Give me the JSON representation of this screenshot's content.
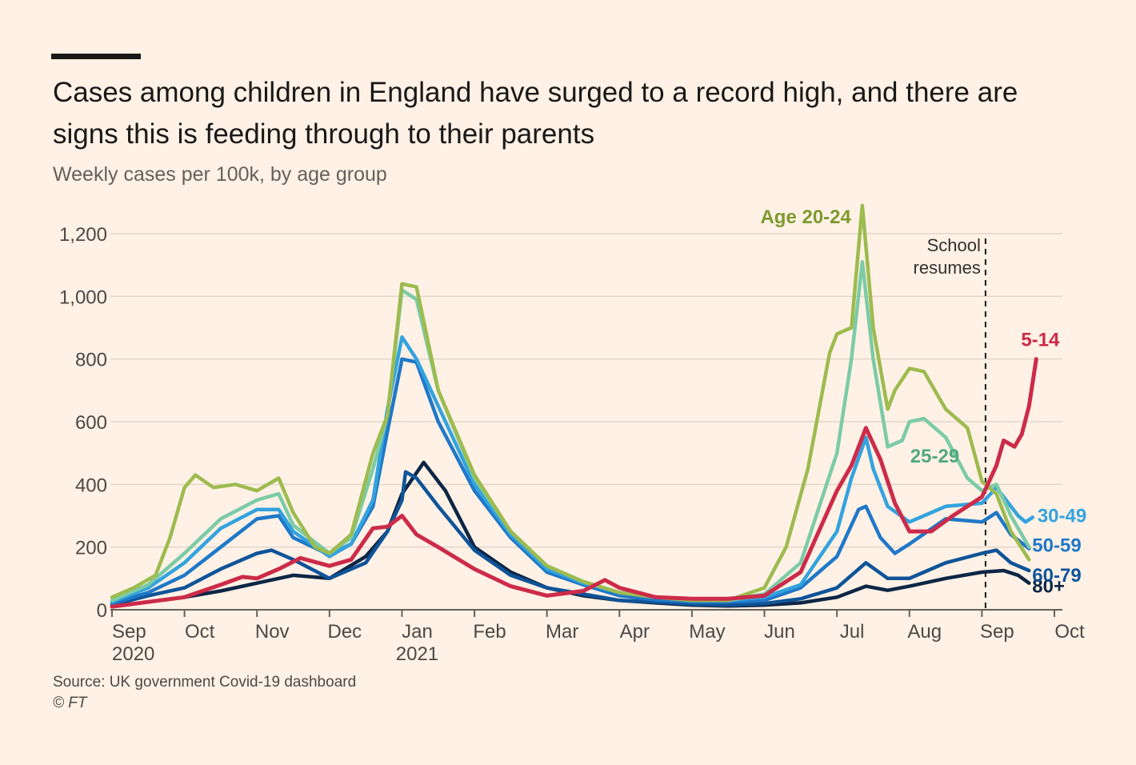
{
  "title": "Cases among children in England have surged to a record high, and there are signs this is feeding through to their parents",
  "subtitle": "Weekly cases per 100k, by age group",
  "source": "Source: UK government Covid-19 dashboard",
  "copyright": "© FT",
  "chart_data": {
    "type": "line",
    "title": "Cases among children in England have surged to a record high, and there are signs this is feeding through to their parents",
    "subtitle": "Weekly cases per 100k, by age group",
    "xlabel": "",
    "ylabel": "",
    "ylim": [
      0,
      1200
    ],
    "yticks": [
      0,
      200,
      400,
      600,
      800,
      1000,
      1200
    ],
    "ytick_labels": [
      "0",
      "200",
      "400",
      "600",
      "800",
      "1,000",
      "1,200"
    ],
    "x_unit": "months since 1 Sep 2020",
    "xlim": [
      0,
      13
    ],
    "xticks": [
      {
        "x": 0,
        "label": "Sep",
        "sub": "2020"
      },
      {
        "x": 1,
        "label": "Oct",
        "sub": ""
      },
      {
        "x": 2,
        "label": "Nov",
        "sub": ""
      },
      {
        "x": 3,
        "label": "Dec",
        "sub": ""
      },
      {
        "x": 4,
        "label": "Jan",
        "sub": "2021"
      },
      {
        "x": 5,
        "label": "Feb",
        "sub": ""
      },
      {
        "x": 6,
        "label": "Mar",
        "sub": ""
      },
      {
        "x": 7,
        "label": "Apr",
        "sub": ""
      },
      {
        "x": 8,
        "label": "May",
        "sub": ""
      },
      {
        "x": 9,
        "label": "Jun",
        "sub": ""
      },
      {
        "x": 10,
        "label": "Jul",
        "sub": ""
      },
      {
        "x": 11,
        "label": "Aug",
        "sub": ""
      },
      {
        "x": 12,
        "label": "Sep",
        "sub": ""
      },
      {
        "x": 13,
        "label": "Oct",
        "sub": ""
      }
    ],
    "grid": true,
    "annotation": {
      "x": 12.05,
      "lines": [
        "School",
        "resumes"
      ]
    },
    "series": [
      {
        "name": "80+",
        "label": "80+",
        "color": "#0d2645",
        "label_color": "#0d2645",
        "label_anchor": "end",
        "points": [
          [
            0,
            10
          ],
          [
            0.5,
            25
          ],
          [
            1,
            40
          ],
          [
            1.5,
            60
          ],
          [
            2,
            85
          ],
          [
            2.5,
            110
          ],
          [
            3,
            100
          ],
          [
            3.5,
            170
          ],
          [
            3.8,
            250
          ],
          [
            4,
            370
          ],
          [
            4.3,
            470
          ],
          [
            4.6,
            380
          ],
          [
            5,
            200
          ],
          [
            5.5,
            120
          ],
          [
            6,
            70
          ],
          [
            6.5,
            45
          ],
          [
            7,
            30
          ],
          [
            7.5,
            22
          ],
          [
            8,
            15
          ],
          [
            8.5,
            12
          ],
          [
            9,
            15
          ],
          [
            9.5,
            22
          ],
          [
            10,
            40
          ],
          [
            10.4,
            75
          ],
          [
            10.7,
            62
          ],
          [
            11,
            75
          ],
          [
            11.5,
            100
          ],
          [
            12,
            120
          ],
          [
            12.3,
            125
          ],
          [
            12.5,
            110
          ],
          [
            12.65,
            85
          ]
        ]
      },
      {
        "name": "60-79",
        "label": "60-79",
        "color": "#0f5499",
        "label_color": "#0f5499",
        "label_anchor": "end",
        "points": [
          [
            0,
            15
          ],
          [
            0.5,
            45
          ],
          [
            1,
            70
          ],
          [
            1.5,
            130
          ],
          [
            2,
            180
          ],
          [
            2.2,
            190
          ],
          [
            2.5,
            160
          ],
          [
            3,
            100
          ],
          [
            3.5,
            150
          ],
          [
            3.8,
            250
          ],
          [
            4,
            350
          ],
          [
            4.05,
            440
          ],
          [
            4.2,
            420
          ],
          [
            4.5,
            330
          ],
          [
            5,
            190
          ],
          [
            5.5,
            110
          ],
          [
            6,
            70
          ],
          [
            6.5,
            50
          ],
          [
            7,
            30
          ],
          [
            7.5,
            25
          ],
          [
            8,
            18
          ],
          [
            8.5,
            15
          ],
          [
            9,
            20
          ],
          [
            9.5,
            35
          ],
          [
            10,
            70
          ],
          [
            10.4,
            150
          ],
          [
            10.7,
            100
          ],
          [
            11,
            100
          ],
          [
            11.5,
            150
          ],
          [
            12,
            180
          ],
          [
            12.2,
            190
          ],
          [
            12.4,
            150
          ],
          [
            12.65,
            125
          ]
        ]
      },
      {
        "name": "50-59",
        "label": "50-59",
        "color": "#1f78c8",
        "label_color": "#1f78c8",
        "label_anchor": "end",
        "points": [
          [
            0,
            20
          ],
          [
            0.5,
            55
          ],
          [
            1,
            110
          ],
          [
            1.5,
            200
          ],
          [
            2,
            290
          ],
          [
            2.3,
            300
          ],
          [
            2.5,
            230
          ],
          [
            3,
            175
          ],
          [
            3.3,
            210
          ],
          [
            3.6,
            330
          ],
          [
            3.8,
            570
          ],
          [
            4,
            800
          ],
          [
            4.2,
            790
          ],
          [
            4.5,
            600
          ],
          [
            5,
            380
          ],
          [
            5.5,
            230
          ],
          [
            6,
            120
          ],
          [
            6.5,
            80
          ],
          [
            7,
            45
          ],
          [
            7.5,
            32
          ],
          [
            8,
            25
          ],
          [
            8.5,
            25
          ],
          [
            9,
            30
          ],
          [
            9.5,
            70
          ],
          [
            10,
            170
          ],
          [
            10.3,
            320
          ],
          [
            10.4,
            330
          ],
          [
            10.6,
            230
          ],
          [
            10.8,
            180
          ],
          [
            11,
            210
          ],
          [
            11.5,
            290
          ],
          [
            12,
            280
          ],
          [
            12.2,
            310
          ],
          [
            12.4,
            240
          ],
          [
            12.65,
            195
          ]
        ]
      },
      {
        "name": "30-49",
        "label": "30-49",
        "color": "#33a3de",
        "label_color": "#33a3de",
        "label_anchor": "start",
        "points": [
          [
            0,
            25
          ],
          [
            0.5,
            70
          ],
          [
            1,
            150
          ],
          [
            1.5,
            260
          ],
          [
            2,
            320
          ],
          [
            2.3,
            320
          ],
          [
            2.5,
            250
          ],
          [
            3,
            170
          ],
          [
            3.3,
            210
          ],
          [
            3.6,
            350
          ],
          [
            3.8,
            640
          ],
          [
            4,
            870
          ],
          [
            4.2,
            800
          ],
          [
            4.5,
            650
          ],
          [
            5,
            400
          ],
          [
            5.5,
            240
          ],
          [
            6,
            130
          ],
          [
            6.5,
            85
          ],
          [
            7,
            55
          ],
          [
            7.5,
            40
          ],
          [
            8,
            30
          ],
          [
            8.5,
            30
          ],
          [
            9,
            40
          ],
          [
            9.5,
            80
          ],
          [
            10,
            250
          ],
          [
            10.2,
            420
          ],
          [
            10.4,
            550
          ],
          [
            10.5,
            450
          ],
          [
            10.7,
            330
          ],
          [
            11,
            280
          ],
          [
            11.5,
            330
          ],
          [
            12,
            340
          ],
          [
            12.2,
            390
          ],
          [
            12.5,
            300
          ],
          [
            12.6,
            280
          ],
          [
            12.7,
            295
          ]
        ]
      },
      {
        "name": "25-29",
        "label": "25-29",
        "color": "#7bcba6",
        "label_color": "#54a87d",
        "label_anchor": "middle",
        "points": [
          [
            0,
            30
          ],
          [
            0.5,
            80
          ],
          [
            1,
            180
          ],
          [
            1.5,
            290
          ],
          [
            2,
            350
          ],
          [
            2.3,
            370
          ],
          [
            2.5,
            270
          ],
          [
            3,
            180
          ],
          [
            3.3,
            230
          ],
          [
            3.6,
            450
          ],
          [
            3.8,
            620
          ],
          [
            4,
            1020
          ],
          [
            4.2,
            990
          ],
          [
            4.5,
            700
          ],
          [
            5,
            420
          ],
          [
            5.5,
            250
          ],
          [
            6,
            140
          ],
          [
            6.5,
            90
          ],
          [
            7,
            55
          ],
          [
            7.5,
            40
          ],
          [
            8,
            30
          ],
          [
            8.5,
            30
          ],
          [
            9,
            50
          ],
          [
            9.5,
            150
          ],
          [
            10,
            500
          ],
          [
            10.2,
            800
          ],
          [
            10.35,
            1110
          ],
          [
            10.5,
            800
          ],
          [
            10.7,
            520
          ],
          [
            10.9,
            540
          ],
          [
            11,
            600
          ],
          [
            11.2,
            610
          ],
          [
            11.5,
            550
          ],
          [
            11.8,
            420
          ],
          [
            12,
            380
          ],
          [
            12.2,
            400
          ],
          [
            12.4,
            300
          ],
          [
            12.65,
            200
          ]
        ]
      },
      {
        "name": "Age 20-24",
        "label": "Age 20-24",
        "color": "#9dbb4f",
        "label_color": "#7d9a2f",
        "label_anchor": "end",
        "points": [
          [
            0,
            40
          ],
          [
            0.3,
            70
          ],
          [
            0.6,
            110
          ],
          [
            0.8,
            230
          ],
          [
            1,
            390
          ],
          [
            1.15,
            430
          ],
          [
            1.4,
            390
          ],
          [
            1.7,
            400
          ],
          [
            2,
            380
          ],
          [
            2.3,
            420
          ],
          [
            2.5,
            310
          ],
          [
            2.8,
            200
          ],
          [
            3,
            180
          ],
          [
            3.3,
            240
          ],
          [
            3.6,
            500
          ],
          [
            3.8,
            620
          ],
          [
            4,
            1040
          ],
          [
            4.2,
            1030
          ],
          [
            4.5,
            700
          ],
          [
            5,
            430
          ],
          [
            5.5,
            250
          ],
          [
            6,
            140
          ],
          [
            6.5,
            90
          ],
          [
            7,
            55
          ],
          [
            7.5,
            40
          ],
          [
            8,
            30
          ],
          [
            8.5,
            30
          ],
          [
            9,
            70
          ],
          [
            9.3,
            200
          ],
          [
            9.6,
            450
          ],
          [
            9.9,
            820
          ],
          [
            10,
            880
          ],
          [
            10.2,
            900
          ],
          [
            10.35,
            1290
          ],
          [
            10.5,
            900
          ],
          [
            10.7,
            640
          ],
          [
            10.8,
            700
          ],
          [
            11,
            770
          ],
          [
            11.2,
            760
          ],
          [
            11.5,
            640
          ],
          [
            11.8,
            580
          ],
          [
            12,
            410
          ],
          [
            12.2,
            370
          ],
          [
            12.4,
            250
          ],
          [
            12.65,
            160
          ]
        ]
      },
      {
        "name": "5-14",
        "label": "5-14",
        "color": "#cc2b49",
        "label_color": "#cc2b49",
        "label_anchor": "middle",
        "points": [
          [
            0,
            10
          ],
          [
            0.5,
            25
          ],
          [
            1,
            40
          ],
          [
            1.5,
            80
          ],
          [
            1.8,
            105
          ],
          [
            2,
            100
          ],
          [
            2.3,
            130
          ],
          [
            2.6,
            165
          ],
          [
            3,
            140
          ],
          [
            3.3,
            160
          ],
          [
            3.6,
            260
          ],
          [
            3.8,
            265
          ],
          [
            4,
            300
          ],
          [
            4.2,
            240
          ],
          [
            4.5,
            200
          ],
          [
            5,
            130
          ],
          [
            5.5,
            75
          ],
          [
            6,
            45
          ],
          [
            6.5,
            60
          ],
          [
            6.8,
            95
          ],
          [
            7,
            70
          ],
          [
            7.5,
            40
          ],
          [
            8,
            35
          ],
          [
            8.5,
            35
          ],
          [
            9,
            45
          ],
          [
            9.5,
            120
          ],
          [
            10,
            380
          ],
          [
            10.2,
            460
          ],
          [
            10.4,
            580
          ],
          [
            10.6,
            480
          ],
          [
            10.8,
            340
          ],
          [
            11,
            250
          ],
          [
            11.3,
            250
          ],
          [
            11.6,
            300
          ],
          [
            12,
            360
          ],
          [
            12.2,
            460
          ],
          [
            12.3,
            540
          ],
          [
            12.45,
            520
          ],
          [
            12.55,
            560
          ],
          [
            12.65,
            650
          ],
          [
            12.75,
            800
          ]
        ]
      }
    ]
  }
}
